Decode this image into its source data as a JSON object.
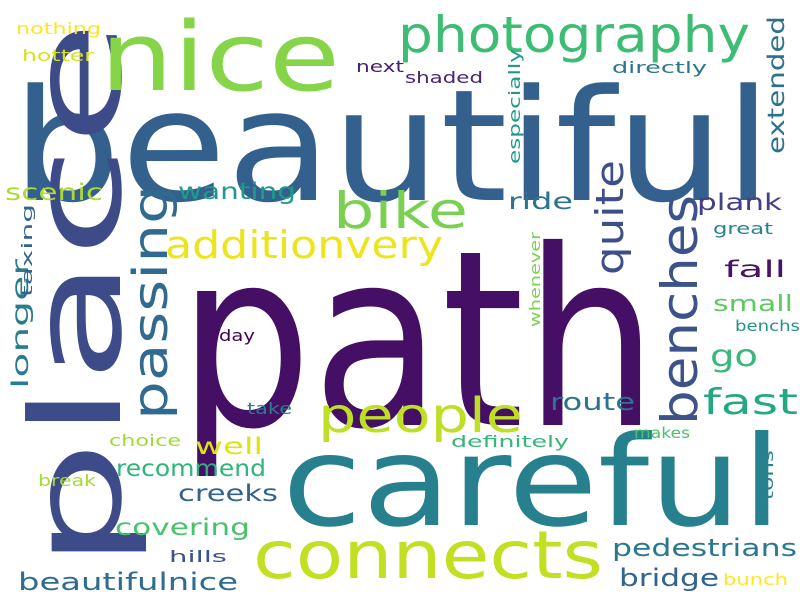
{
  "words": [
    {
      "text": "path",
      "color": "#440f64"
    },
    {
      "text": "beautiful",
      "color": "#34608d"
    },
    {
      "text": "careful",
      "color": "#27808e"
    },
    {
      "text": "place",
      "color": "#3e4b89"
    },
    {
      "text": "nice",
      "color": "#86d549"
    },
    {
      "text": "connects",
      "color": "#c2df23"
    },
    {
      "text": "photography",
      "color": "#3dbc74"
    },
    {
      "text": "benches",
      "color": "#3b528b"
    },
    {
      "text": "people",
      "color": "#bddf26"
    },
    {
      "text": "passing",
      "color": "#306a8e"
    },
    {
      "text": "bike",
      "color": "#7ad151"
    },
    {
      "text": "additionvery",
      "color": "#ece51b"
    },
    {
      "text": "quite",
      "color": "#3c4f8a"
    },
    {
      "text": "fast",
      "color": "#23a884"
    },
    {
      "text": "go",
      "color": "#37b878"
    },
    {
      "text": "extended",
      "color": "#2c728e"
    },
    {
      "text": "longer",
      "color": "#297b8e"
    },
    {
      "text": "pedestrians",
      "color": "#2a788e"
    },
    {
      "text": "beautifulnice",
      "color": "#2e6d8e"
    },
    {
      "text": "recommend",
      "color": "#2fb47c"
    },
    {
      "text": "covering",
      "color": "#4ac16d"
    },
    {
      "text": "creeks",
      "color": "#33638d"
    },
    {
      "text": "bridge",
      "color": "#32648e"
    },
    {
      "text": "route",
      "color": "#2c738e"
    },
    {
      "text": "wanting",
      "color": "#1f9a8a"
    },
    {
      "text": "scenic",
      "color": "#addc30"
    },
    {
      "text": "plank",
      "color": "#424086"
    },
    {
      "text": "ride",
      "color": "#2c738e"
    },
    {
      "text": "fall",
      "color": "#471365"
    },
    {
      "text": "small",
      "color": "#5ec962"
    },
    {
      "text": "well",
      "color": "#dde318"
    },
    {
      "text": "especially",
      "color": "#1f988b"
    },
    {
      "text": "next",
      "color": "#481d6f"
    },
    {
      "text": "shaded",
      "color": "#482475"
    },
    {
      "text": "directly",
      "color": "#2a768e"
    },
    {
      "text": "hotter",
      "color": "#d5e21a"
    },
    {
      "text": "nothing",
      "color": "#fde725"
    },
    {
      "text": "great",
      "color": "#25848e"
    },
    {
      "text": "taxing",
      "color": "#33638d"
    },
    {
      "text": "whenever",
      "color": "#7ad151"
    },
    {
      "text": "benchs",
      "color": "#21918c"
    },
    {
      "text": "day",
      "color": "#440154"
    },
    {
      "text": "take",
      "color": "#287d8e"
    },
    {
      "text": "makes",
      "color": "#4ac16d"
    },
    {
      "text": "definitely",
      "color": "#35b779"
    },
    {
      "text": "choice",
      "color": "#a0da39"
    },
    {
      "text": "break",
      "color": "#a5db36"
    },
    {
      "text": "tons",
      "color": "#26828e"
    },
    {
      "text": "hills",
      "color": "#3b528b"
    },
    {
      "text": "bunch",
      "color": "#fde725"
    }
  ]
}
